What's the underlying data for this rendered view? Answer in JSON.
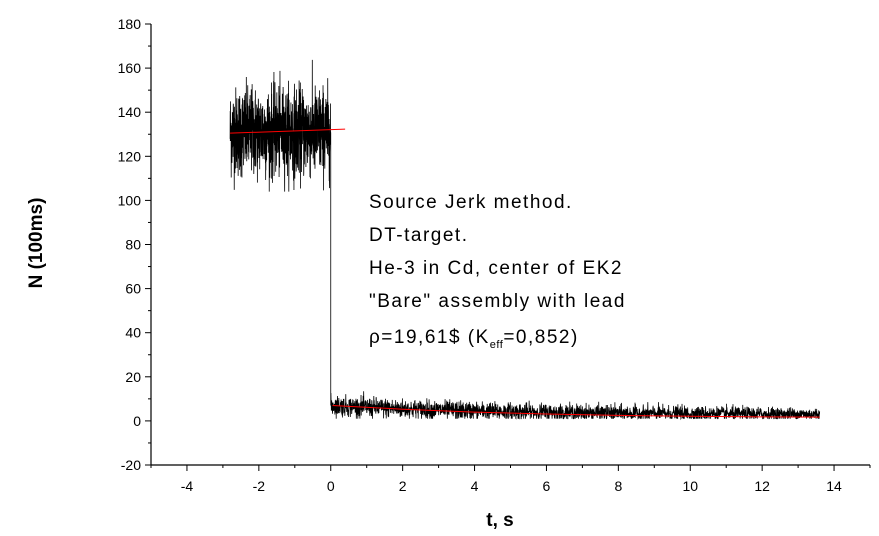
{
  "chart_data": {
    "type": "line",
    "title": "",
    "xlabel": "t, s",
    "ylabel": "N (100ms)",
    "xlim": [
      -5,
      15
    ],
    "ylim": [
      -20,
      180
    ],
    "x_ticks": [
      -4,
      -2,
      0,
      2,
      4,
      6,
      8,
      10,
      12,
      14
    ],
    "y_ticks": [
      -20,
      0,
      20,
      40,
      60,
      80,
      100,
      120,
      140,
      160,
      180
    ],
    "grid": false,
    "legend": "none",
    "annotation_lines": [
      "Source Jerk method.",
      "DT-target.",
      "He-3 in Cd, center of EK2",
      "\"Bare\" assembly with lead"
    ],
    "annotation_rho": {
      "prefix": "ρ=19,61$ (K",
      "subscript": "eff",
      "suffix": "=0,852)"
    },
    "series": [
      {
        "color": "#000000",
        "segments": [
          {
            "x_range": [
              -2.8,
              0
            ],
            "mean": 131,
            "spread": [
              104,
              165
            ],
            "noise_sd": 10
          },
          {
            "x_range": [
              0,
              13.6
            ],
            "mean_start": 7,
            "mean_end": 3,
            "spread": [
              1,
              15
            ],
            "noise_sd": 1.8
          }
        ],
        "jump_x": 0
      },
      {
        "color": "#ff0000",
        "fit_segments": [
          {
            "x": [
              -2.8,
              0.4
            ],
            "y": [
              130.5,
              132.3
            ]
          },
          {
            "x": [
              0.05,
              2,
              4,
              6,
              8,
              10,
              12,
              13.6
            ],
            "y": [
              7,
              5.3,
              4.0,
              3.1,
              2.5,
              2.1,
              1.8,
              1.7
            ]
          }
        ]
      }
    ]
  }
}
